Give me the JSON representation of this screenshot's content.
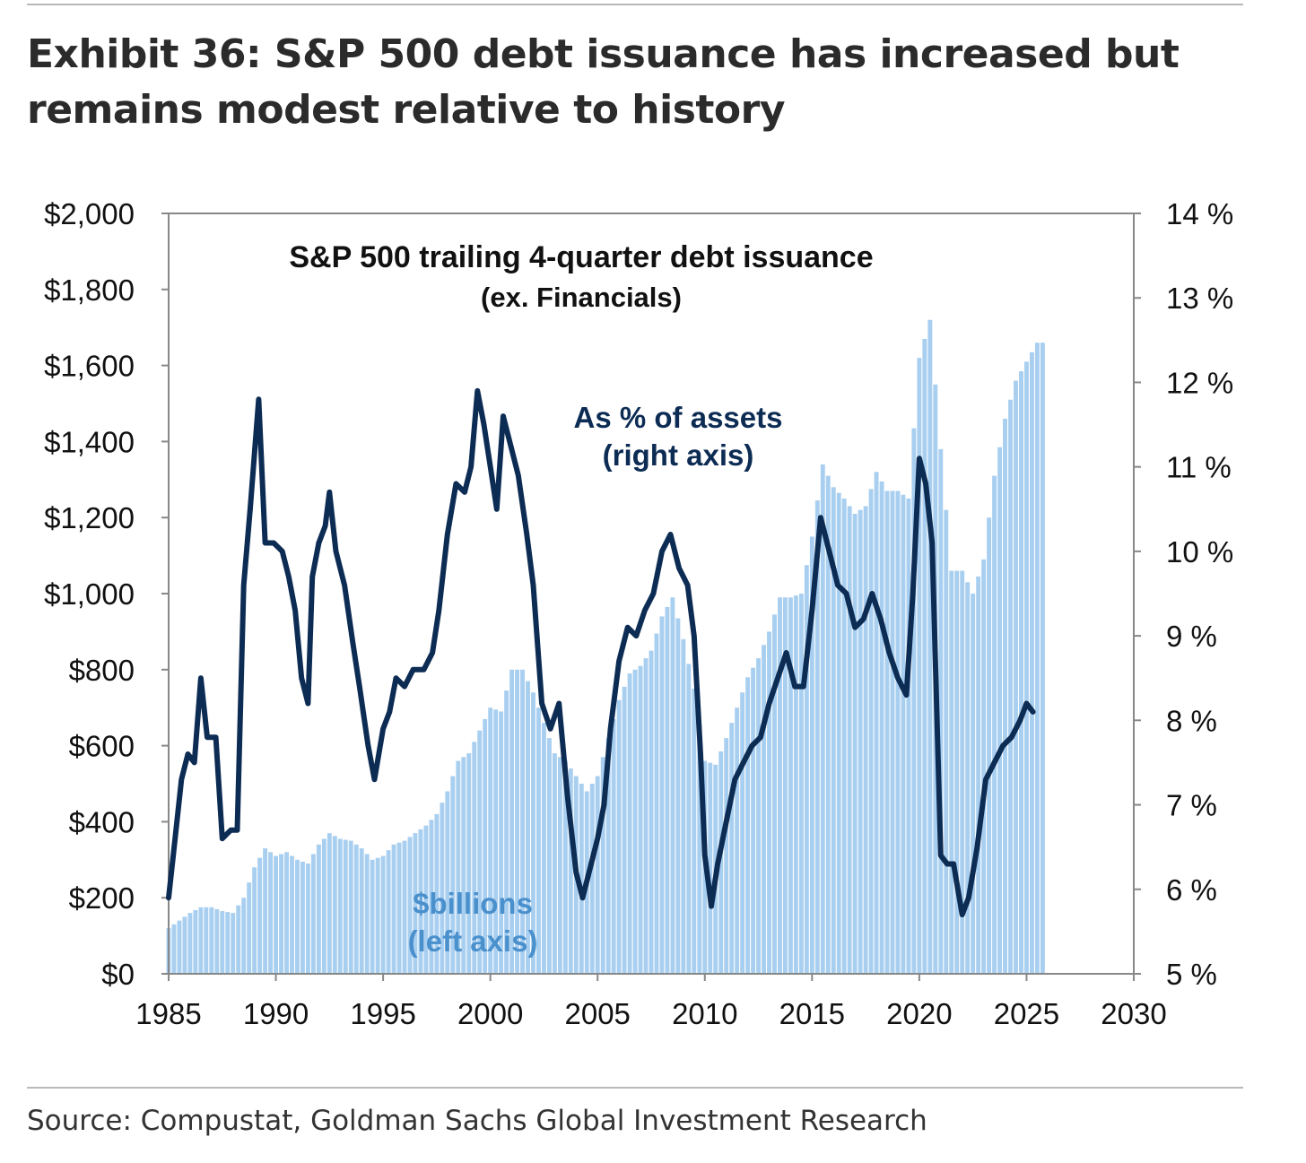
{
  "title": "Exhibit 36: S&P 500 debt issuance has increased but remains modest relative to history",
  "source": "Source: Compustat, Goldman Sachs Global Investment Research",
  "chart_data": {
    "type": "bar+line",
    "title": "S&P 500 trailing 4-quarter debt issuance",
    "subtitle": "(ex. Financials)",
    "xlim": [
      1985,
      2030
    ],
    "x_ticks": [
      "1985",
      "1990",
      "1995",
      "2000",
      "2005",
      "2010",
      "2015",
      "2020",
      "2025",
      "2030"
    ],
    "left_axis": {
      "ylim": [
        0,
        2000
      ],
      "ticks": [
        "$0",
        "$200",
        "$400",
        "$600",
        "$800",
        "$1,000",
        "$1,200",
        "$1,400",
        "$1,600",
        "$1,800",
        "$2,000"
      ]
    },
    "right_axis": {
      "ylim": [
        5,
        14
      ],
      "ticks": [
        "5 %",
        "6 %",
        "7 %",
        "8 %",
        "9 %",
        "10 %",
        "11 %",
        "12 %",
        "13 %",
        "14 %"
      ]
    },
    "colors": {
      "bars": "#a9cff0",
      "line": "#0d2c54",
      "bar_label": "#4a90cc",
      "line_label": "#0d2c54",
      "axis": "#888888"
    },
    "series": [
      {
        "name": "$billions (left axis)",
        "label_lines": [
          "$billions",
          "(left axis)"
        ],
        "kind": "bar",
        "axis": "left",
        "points": [
          [
            1985.0,
            120
          ],
          [
            1985.5,
            140
          ],
          [
            1986.0,
            160
          ],
          [
            1986.5,
            175
          ],
          [
            1987.0,
            175
          ],
          [
            1987.5,
            165
          ],
          [
            1988.0,
            160
          ],
          [
            1988.5,
            200
          ],
          [
            1989.0,
            280
          ],
          [
            1989.5,
            330
          ],
          [
            1990.0,
            310
          ],
          [
            1990.5,
            320
          ],
          [
            1991.0,
            300
          ],
          [
            1991.5,
            290
          ],
          [
            1992.0,
            340
          ],
          [
            1992.5,
            370
          ],
          [
            1993.0,
            355
          ],
          [
            1993.5,
            350
          ],
          [
            1994.0,
            330
          ],
          [
            1994.5,
            300
          ],
          [
            1995.0,
            310
          ],
          [
            1995.5,
            340
          ],
          [
            1996.0,
            350
          ],
          [
            1996.5,
            370
          ],
          [
            1997.0,
            390
          ],
          [
            1997.5,
            420
          ],
          [
            1998.0,
            480
          ],
          [
            1998.5,
            560
          ],
          [
            1999.0,
            580
          ],
          [
            1999.5,
            640
          ],
          [
            2000.0,
            700
          ],
          [
            2000.5,
            690
          ],
          [
            2001.0,
            800
          ],
          [
            2001.5,
            800
          ],
          [
            2002.0,
            740
          ],
          [
            2002.5,
            660
          ],
          [
            2003.0,
            580
          ],
          [
            2003.5,
            560
          ],
          [
            2004.0,
            520
          ],
          [
            2004.5,
            480
          ],
          [
            2005.0,
            520
          ],
          [
            2005.5,
            620
          ],
          [
            2006.0,
            720
          ],
          [
            2006.5,
            790
          ],
          [
            2007.0,
            810
          ],
          [
            2007.5,
            850
          ],
          [
            2008.0,
            940
          ],
          [
            2008.5,
            990
          ],
          [
            2009.0,
            880
          ],
          [
            2009.5,
            750
          ],
          [
            2010.0,
            560
          ],
          [
            2010.5,
            550
          ],
          [
            2011.0,
            620
          ],
          [
            2011.5,
            700
          ],
          [
            2012.0,
            780
          ],
          [
            2012.5,
            830
          ],
          [
            2013.0,
            900
          ],
          [
            2013.5,
            990
          ],
          [
            2014.0,
            990
          ],
          [
            2014.5,
            1000
          ],
          [
            2015.0,
            1150
          ],
          [
            2015.5,
            1340
          ],
          [
            2016.0,
            1280
          ],
          [
            2016.5,
            1250
          ],
          [
            2017.0,
            1210
          ],
          [
            2017.5,
            1230
          ],
          [
            2018.0,
            1320
          ],
          [
            2018.5,
            1270
          ],
          [
            2019.0,
            1270
          ],
          [
            2019.5,
            1250
          ],
          [
            2020.0,
            1620
          ],
          [
            2020.5,
            1720
          ],
          [
            2021.0,
            1380
          ],
          [
            2021.5,
            1060
          ],
          [
            2022.0,
            1060
          ],
          [
            2022.5,
            1000
          ],
          [
            2023.0,
            1090
          ],
          [
            2023.5,
            1310
          ],
          [
            2024.0,
            1460
          ],
          [
            2024.5,
            1560
          ],
          [
            2025.0,
            1610
          ],
          [
            2025.5,
            1660
          ]
        ]
      },
      {
        "name": "As % of assets (right axis)",
        "label_lines": [
          "As % of assets",
          "(right axis)"
        ],
        "kind": "line",
        "axis": "right",
        "points": [
          [
            1985.0,
            5.9
          ],
          [
            1985.3,
            6.6
          ],
          [
            1985.6,
            7.3
          ],
          [
            1985.9,
            7.6
          ],
          [
            1986.2,
            7.5
          ],
          [
            1986.5,
            8.5
          ],
          [
            1986.8,
            7.8
          ],
          [
            1987.2,
            7.8
          ],
          [
            1987.5,
            6.6
          ],
          [
            1987.9,
            6.7
          ],
          [
            1988.2,
            6.7
          ],
          [
            1988.5,
            9.6
          ],
          [
            1988.8,
            10.5
          ],
          [
            1989.2,
            11.8
          ],
          [
            1989.5,
            10.1
          ],
          [
            1989.9,
            10.1
          ],
          [
            1990.3,
            10.0
          ],
          [
            1990.6,
            9.7
          ],
          [
            1990.9,
            9.3
          ],
          [
            1991.2,
            8.5
          ],
          [
            1991.5,
            8.2
          ],
          [
            1991.7,
            9.7
          ],
          [
            1992.0,
            10.1
          ],
          [
            1992.3,
            10.3
          ],
          [
            1992.5,
            10.7
          ],
          [
            1992.8,
            10.0
          ],
          [
            1993.2,
            9.6
          ],
          [
            1993.6,
            8.9
          ],
          [
            1993.9,
            8.4
          ],
          [
            1994.3,
            7.7
          ],
          [
            1994.6,
            7.3
          ],
          [
            1995.0,
            7.9
          ],
          [
            1995.3,
            8.1
          ],
          [
            1995.6,
            8.5
          ],
          [
            1996.0,
            8.4
          ],
          [
            1996.4,
            8.6
          ],
          [
            1996.9,
            8.6
          ],
          [
            1997.3,
            8.8
          ],
          [
            1997.6,
            9.3
          ],
          [
            1998.0,
            10.2
          ],
          [
            1998.4,
            10.8
          ],
          [
            1998.8,
            10.7
          ],
          [
            1999.1,
            11.0
          ],
          [
            1999.4,
            11.9
          ],
          [
            1999.7,
            11.5
          ],
          [
            2000.0,
            11.0
          ],
          [
            2000.3,
            10.5
          ],
          [
            2000.6,
            11.6
          ],
          [
            2000.9,
            11.3
          ],
          [
            2001.3,
            10.9
          ],
          [
            2001.7,
            10.2
          ],
          [
            2002.0,
            9.6
          ],
          [
            2002.4,
            8.2
          ],
          [
            2002.8,
            7.9
          ],
          [
            2003.2,
            8.2
          ],
          [
            2003.6,
            7.1
          ],
          [
            2004.0,
            6.2
          ],
          [
            2004.3,
            5.9
          ],
          [
            2004.6,
            6.2
          ],
          [
            2005.0,
            6.6
          ],
          [
            2005.3,
            7.0
          ],
          [
            2005.6,
            7.9
          ],
          [
            2006.0,
            8.7
          ],
          [
            2006.4,
            9.1
          ],
          [
            2006.8,
            9.0
          ],
          [
            2007.2,
            9.3
          ],
          [
            2007.6,
            9.5
          ],
          [
            2008.0,
            10.0
          ],
          [
            2008.4,
            10.2
          ],
          [
            2008.8,
            9.8
          ],
          [
            2009.2,
            9.6
          ],
          [
            2009.5,
            9.0
          ],
          [
            2009.8,
            7.6
          ],
          [
            2010.0,
            6.4
          ],
          [
            2010.3,
            5.8
          ],
          [
            2010.6,
            6.3
          ],
          [
            2011.0,
            6.8
          ],
          [
            2011.4,
            7.3
          ],
          [
            2011.8,
            7.5
          ],
          [
            2012.2,
            7.7
          ],
          [
            2012.6,
            7.8
          ],
          [
            2013.0,
            8.2
          ],
          [
            2013.4,
            8.5
          ],
          [
            2013.8,
            8.8
          ],
          [
            2014.2,
            8.4
          ],
          [
            2014.6,
            8.4
          ],
          [
            2015.0,
            9.3
          ],
          [
            2015.4,
            10.4
          ],
          [
            2015.8,
            10.0
          ],
          [
            2016.2,
            9.6
          ],
          [
            2016.6,
            9.5
          ],
          [
            2017.0,
            9.1
          ],
          [
            2017.4,
            9.2
          ],
          [
            2017.8,
            9.5
          ],
          [
            2018.2,
            9.2
          ],
          [
            2018.6,
            8.8
          ],
          [
            2019.0,
            8.5
          ],
          [
            2019.4,
            8.3
          ],
          [
            2019.7,
            9.5
          ],
          [
            2020.0,
            11.1
          ],
          [
            2020.3,
            10.8
          ],
          [
            2020.6,
            10.1
          ],
          [
            2021.0,
            6.4
          ],
          [
            2021.3,
            6.3
          ],
          [
            2021.6,
            6.3
          ],
          [
            2022.0,
            5.7
          ],
          [
            2022.3,
            5.9
          ],
          [
            2022.7,
            6.5
          ],
          [
            2023.1,
            7.3
          ],
          [
            2023.5,
            7.5
          ],
          [
            2023.9,
            7.7
          ],
          [
            2024.3,
            7.8
          ],
          [
            2024.7,
            8.0
          ],
          [
            2025.0,
            8.2
          ],
          [
            2025.3,
            8.1
          ]
        ]
      }
    ]
  }
}
